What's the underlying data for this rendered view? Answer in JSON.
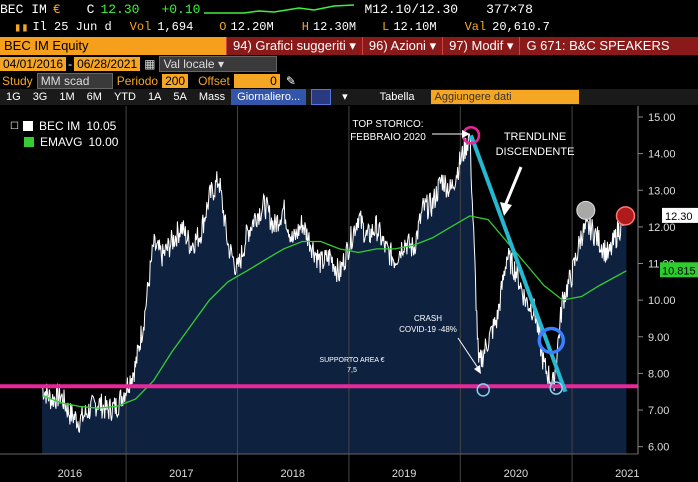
{
  "quote_bar": {
    "ticker": "BEC IM",
    "currency": "€",
    "last_label": "C",
    "last": "12.30",
    "change": "+0.10",
    "bid_ask": "M12.10/12.30",
    "size": "377×78"
  },
  "info_bar": {
    "date": "Il 25 Jun d",
    "vol_label": "Vol",
    "vol": "1,694",
    "open_label": "O",
    "open": "12.20M",
    "high_label": "H",
    "high": "12.30M",
    "low_label": "L",
    "low": "12.10M",
    "val_label": "Val",
    "val": "20,610.7"
  },
  "title_bar": {
    "security": "BEC IM Equity",
    "menu1": "94) Grafici suggeriti",
    "menu2": "96) Azioni",
    "menu3": "97) Modif",
    "menu4": "G 671: B&C SPEAKERS"
  },
  "range_bar": {
    "start": "04/01/2016",
    "end": "06/28/2021",
    "currency": "Val locale"
  },
  "study_bar": {
    "study_label": "Study",
    "study_value": "MM scad",
    "period_label": "Periodo",
    "period_value": "200",
    "offset_label": "Offset",
    "offset_value": "0"
  },
  "toolbar": {
    "periods": [
      "1G",
      "3G",
      "1M",
      "6M",
      "YTD",
      "1A",
      "5A",
      "Mass"
    ],
    "frequency": "Giornaliero...",
    "table": "Tabella",
    "add_data": "Aggiungere dati"
  },
  "legend": {
    "price": {
      "name": "BEC IM",
      "value": "10.05",
      "color": "#ffffff"
    },
    "ema": {
      "name": "EMAVG",
      "value": "10.00",
      "color": "#33cc33"
    }
  },
  "chart_data": {
    "type": "line",
    "x_ticks": [
      "2016",
      "2017",
      "2018",
      "2019",
      "2020",
      "2021"
    ],
    "x_range": [
      "2016-04-01",
      "2021-06-28"
    ],
    "ylim": [
      5.8,
      15.3
    ],
    "y_ticks": [
      "15.00",
      "14.00",
      "13.00",
      "12.00",
      "11.00",
      "10.00",
      "9.00",
      "8.00",
      "7.00",
      "6.00"
    ],
    "last_price_label": "12.30",
    "ema_label": "10.815",
    "support_level": 7.65,
    "colors": {
      "price": "#ffffff",
      "area": "#0e2240",
      "ema": "#33cc33",
      "support": "#e8279a",
      "trend": "#26b8d0"
    },
    "price_series": [
      [
        "2016-04-01",
        7.6
      ],
      [
        "2016-05-01",
        7.3
      ],
      [
        "2016-06-01",
        7.4
      ],
      [
        "2016-07-01",
        6.9
      ],
      [
        "2016-08-01",
        6.7
      ],
      [
        "2016-09-01",
        7.0
      ],
      [
        "2016-10-01",
        7.2
      ],
      [
        "2016-11-01",
        7.0
      ],
      [
        "2016-12-01",
        7.1
      ],
      [
        "2017-01-01",
        7.6
      ],
      [
        "2017-02-01",
        8.2
      ],
      [
        "2017-03-01",
        9.5
      ],
      [
        "2017-04-01",
        11.5
      ],
      [
        "2017-05-01",
        11.2
      ],
      [
        "2017-06-01",
        11.6
      ],
      [
        "2017-07-01",
        12.0
      ],
      [
        "2017-08-01",
        11.5
      ],
      [
        "2017-09-01",
        11.8
      ],
      [
        "2017-10-01",
        12.8
      ],
      [
        "2017-11-01",
        13.3
      ],
      [
        "2017-12-01",
        11.5
      ],
      [
        "2018-01-01",
        10.8
      ],
      [
        "2018-02-01",
        11.8
      ],
      [
        "2018-03-01",
        12.3
      ],
      [
        "2018-04-01",
        12.6
      ],
      [
        "2018-05-01",
        12.0
      ],
      [
        "2018-06-01",
        12.5
      ],
      [
        "2018-07-01",
        11.6
      ],
      [
        "2018-08-01",
        12.1
      ],
      [
        "2018-09-01",
        11.5
      ],
      [
        "2018-10-01",
        11.0
      ],
      [
        "2018-11-01",
        11.2
      ],
      [
        "2018-12-01",
        10.7
      ],
      [
        "2019-01-01",
        11.5
      ],
      [
        "2019-02-01",
        12.3
      ],
      [
        "2019-03-01",
        11.7
      ],
      [
        "2019-04-01",
        12.0
      ],
      [
        "2019-05-01",
        11.4
      ],
      [
        "2019-06-01",
        11.1
      ],
      [
        "2019-07-01",
        11.6
      ],
      [
        "2019-08-01",
        11.4
      ],
      [
        "2019-09-01",
        12.5
      ],
      [
        "2019-10-01",
        12.6
      ],
      [
        "2019-11-01",
        13.3
      ],
      [
        "2019-12-01",
        13.0
      ],
      [
        "2020-01-01",
        13.8
      ],
      [
        "2020-02-01",
        14.5
      ],
      [
        "2020-03-01",
        8.2
      ],
      [
        "2020-04-01",
        8.9
      ],
      [
        "2020-05-01",
        9.5
      ],
      [
        "2020-06-01",
        11.2
      ],
      [
        "2020-07-01",
        10.8
      ],
      [
        "2020-08-01",
        10.0
      ],
      [
        "2020-09-01",
        9.7
      ],
      [
        "2020-10-01",
        8.2
      ],
      [
        "2020-11-01",
        7.7
      ],
      [
        "2020-12-01",
        10.0
      ],
      [
        "2021-01-01",
        10.7
      ],
      [
        "2021-02-01",
        11.8
      ],
      [
        "2021-03-01",
        12.0
      ],
      [
        "2021-04-01",
        11.6
      ],
      [
        "2021-05-01",
        11.2
      ],
      [
        "2021-06-01",
        11.9
      ],
      [
        "2021-06-28",
        12.3
      ]
    ],
    "ema_series": [
      [
        "2016-04-01",
        7.4
      ],
      [
        "2016-06-01",
        7.2
      ],
      [
        "2016-08-01",
        7.1
      ],
      [
        "2016-10-01",
        7.05
      ],
      [
        "2016-12-01",
        7.1
      ],
      [
        "2017-02-01",
        7.3
      ],
      [
        "2017-04-01",
        7.8
      ],
      [
        "2017-06-01",
        8.6
      ],
      [
        "2017-08-01",
        9.3
      ],
      [
        "2017-10-01",
        10.0
      ],
      [
        "2017-12-01",
        10.5
      ],
      [
        "2018-02-01",
        10.8
      ],
      [
        "2018-04-01",
        11.1
      ],
      [
        "2018-06-01",
        11.4
      ],
      [
        "2018-08-01",
        11.6
      ],
      [
        "2018-10-01",
        11.6
      ],
      [
        "2018-12-01",
        11.4
      ],
      [
        "2019-02-01",
        11.3
      ],
      [
        "2019-04-01",
        11.4
      ],
      [
        "2019-06-01",
        11.4
      ],
      [
        "2019-08-01",
        11.5
      ],
      [
        "2019-10-01",
        11.7
      ],
      [
        "2019-12-01",
        12.0
      ],
      [
        "2020-02-01",
        12.3
      ],
      [
        "2020-04-01",
        12.2
      ],
      [
        "2020-06-01",
        11.6
      ],
      [
        "2020-08-01",
        11.0
      ],
      [
        "2020-10-01",
        10.4
      ],
      [
        "2020-12-01",
        10.0
      ],
      [
        "2021-02-01",
        10.1
      ],
      [
        "2021-04-01",
        10.4
      ],
      [
        "2021-06-28",
        10.8
      ]
    ],
    "trendline": [
      [
        "2020-02-05",
        14.5
      ],
      [
        "2020-12-10",
        7.5
      ]
    ],
    "circles": [
      {
        "date": "2020-02-05",
        "value": 14.5,
        "kind": "top"
      },
      {
        "date": "2020-03-16",
        "value": 7.55,
        "kind": "support-touch"
      },
      {
        "date": "2020-11-10",
        "value": 7.6,
        "kind": "support-touch"
      },
      {
        "date": "2020-10-25",
        "value": 8.9,
        "kind": "breakout"
      },
      {
        "date": "2021-02-15",
        "value": 12.45,
        "kind": "gray"
      },
      {
        "date": "2021-06-25",
        "value": 12.3,
        "kind": "red"
      }
    ],
    "annotations": {
      "top": [
        "TOP STORICO:",
        "FEBBRAIO 2020"
      ],
      "trend": [
        "TRENDLINE",
        "DISCENDENTE"
      ],
      "crash": [
        "CRASH",
        "COVID-19 -48%"
      ],
      "support": [
        "SUPPORTO AREA €",
        "7,5"
      ]
    }
  }
}
